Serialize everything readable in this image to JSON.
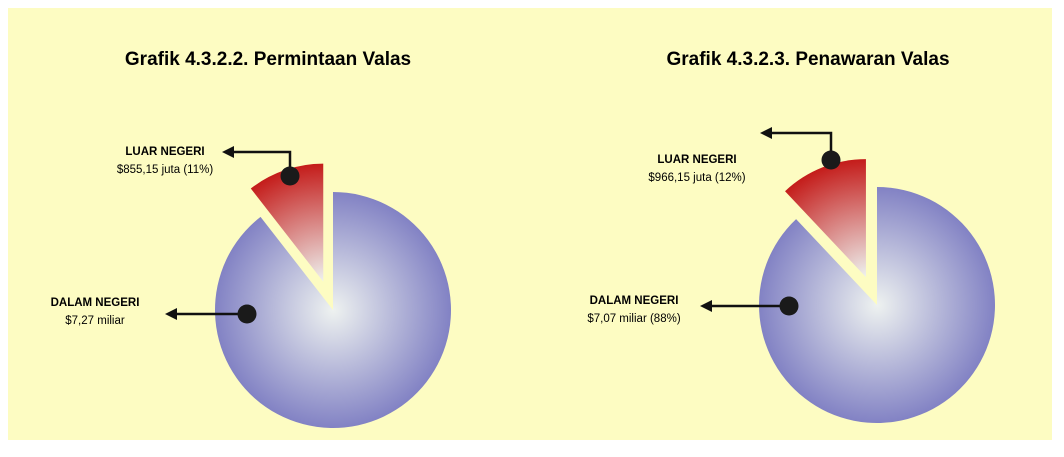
{
  "chart_data": [
    {
      "type": "pie",
      "title": "Grafik 4.3.2.2. Permintaan Valas",
      "categories": [
        "LUAR NEGERI",
        "DALAM NEGERI"
      ],
      "values": [
        855150000,
        7270000000
      ],
      "value_labels": [
        "$855,15 juta (11%)",
        "$7,27 miliar"
      ],
      "colors": [
        "#c41c1a",
        "#8282c4"
      ]
    },
    {
      "type": "pie",
      "title": "Grafik 4.3.2.3. Penawaran Valas",
      "categories": [
        "LUAR NEGERI",
        "DALAM NEGERI"
      ],
      "values": [
        966150000,
        7070000000
      ],
      "value_labels": [
        "$966,15 juta (12%)",
        "$7,07 miliar (88%)"
      ],
      "colors": [
        "#c41c1a",
        "#8282c4"
      ]
    }
  ]
}
